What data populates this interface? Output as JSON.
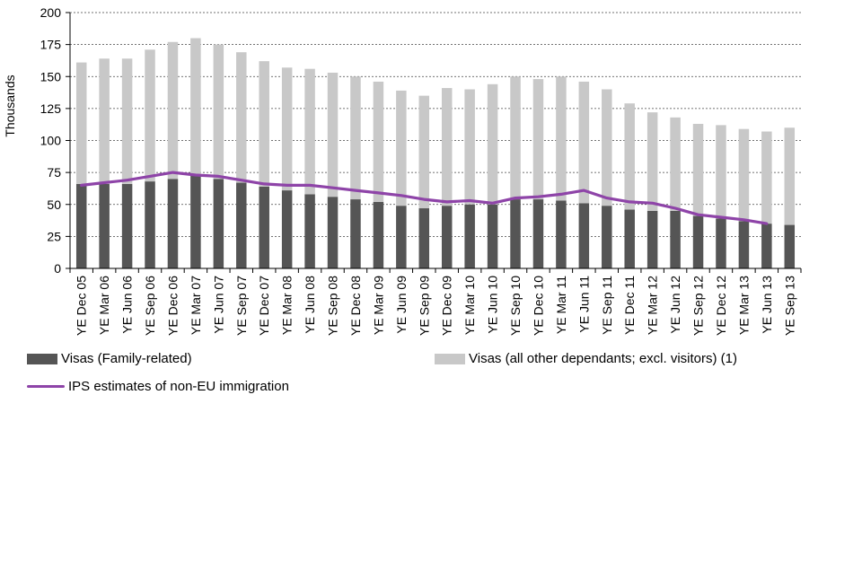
{
  "chart_data": {
    "type": "bar",
    "stacked": true,
    "ylabel": "Thousands",
    "xlabel": "",
    "ylim": [
      0,
      200
    ],
    "yticks": [
      0,
      25,
      50,
      75,
      100,
      125,
      150,
      175,
      200
    ],
    "grid": "horizontal dashed",
    "legend_position": "bottom",
    "categories": [
      "YE Dec 05",
      "YE Mar 06",
      "YE Jun 06",
      "YE Sep 06",
      "YE Dec 06",
      "YE Mar 07",
      "YE Jun 07",
      "YE Sep 07",
      "YE Dec 07",
      "YE Mar 08",
      "YE Jun 08",
      "YE Sep 08",
      "YE Dec 08",
      "YE Mar 09",
      "YE Jun 09",
      "YE Sep 09",
      "YE Dec 09",
      "YE Mar 10",
      "YE Jun 10",
      "YE Sep 10",
      "YE Dec 10",
      "YE Mar 11",
      "YE Jun 11",
      "YE Sep 11",
      "YE Dec 11",
      "YE Mar 12",
      "YE Jun 12",
      "YE Sep 12",
      "YE Dec 12",
      "YE Mar 13",
      "YE Jun 13",
      "YE Sep 13"
    ],
    "series": [
      {
        "name": "Visas (Family-related)",
        "kind": "bar",
        "color": "#555555",
        "values": [
          66,
          66,
          66,
          68,
          70,
          73,
          70,
          67,
          64,
          61,
          58,
          56,
          54,
          52,
          49,
          47,
          49,
          50,
          50,
          54,
          54,
          53,
          51,
          49,
          46,
          45,
          45,
          41,
          39,
          37,
          35,
          34
        ]
      },
      {
        "name": "Visas (all other dependants; excl. visitors) (1)",
        "kind": "bar",
        "color": "#c8c8c8",
        "values": [
          95,
          98,
          98,
          103,
          107,
          107,
          105,
          102,
          98,
          96,
          98,
          97,
          96,
          94,
          90,
          88,
          92,
          90,
          94,
          96,
          94,
          97,
          95,
          91,
          83,
          77,
          73,
          72,
          73,
          72,
          72,
          76
        ]
      },
      {
        "name": "IPS estimates of non-EU immigration",
        "kind": "line",
        "color": "#8e44a8",
        "values": [
          65,
          67,
          69,
          72,
          75,
          73,
          72,
          69,
          66,
          65,
          65,
          63,
          61,
          59,
          57,
          54,
          52,
          53,
          51,
          55,
          56,
          58,
          61,
          55,
          52,
          51,
          47,
          42,
          40,
          38,
          35,
          null
        ]
      }
    ]
  }
}
